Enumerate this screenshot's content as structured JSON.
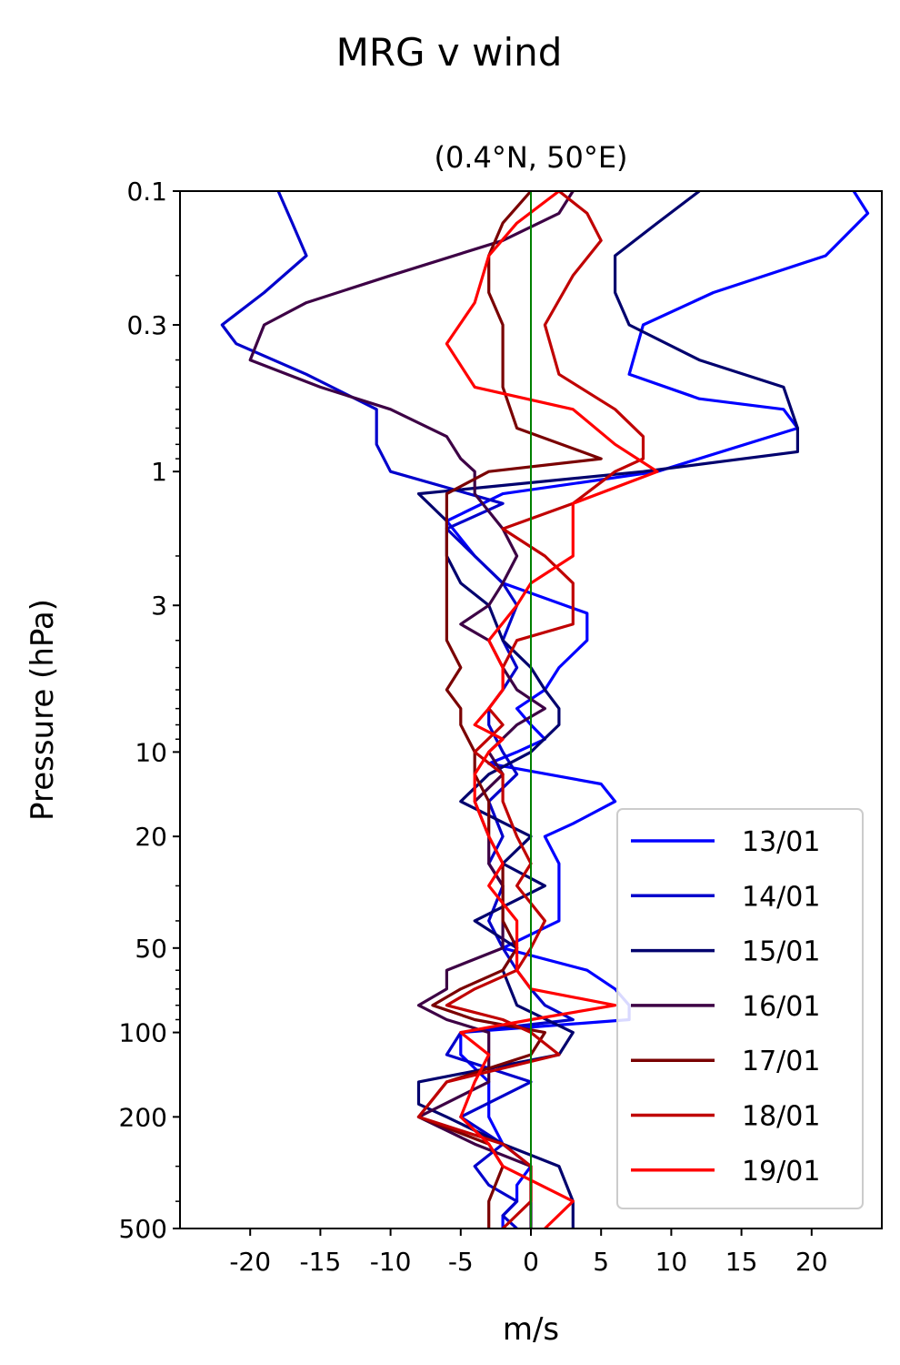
{
  "chart_data": {
    "type": "line",
    "title": "MRG v wind",
    "subtitle": "(0.4°N, 50°E)",
    "xlabel": "m/s",
    "ylabel": "Pressure (hPa)",
    "xlim": [
      -25,
      25
    ],
    "ylim": [
      500,
      0.1
    ],
    "y_scale": "log",
    "x_ticks": [
      -20,
      -15,
      -10,
      -5,
      0,
      5,
      10,
      15,
      20
    ],
    "x_tick_labels": [
      "-20",
      "-15",
      "-10",
      "-5",
      "0",
      "5",
      "10",
      "15",
      "20"
    ],
    "y_ticks": [
      0.1,
      0.3,
      1,
      3,
      10,
      20,
      50,
      100,
      200,
      500
    ],
    "y_tick_labels": [
      "0.1",
      "0.3",
      "1",
      "3",
      "10",
      "20",
      "50",
      "100",
      "200",
      "500"
    ],
    "zero_line_color": "#008000",
    "legend_position": "lower-right",
    "grid": false,
    "series": [
      {
        "name": "13/01",
        "color": "#0000ff",
        "p": [
          0.1,
          0.12,
          0.17,
          0.23,
          0.3,
          0.45,
          0.55,
          0.6,
          0.7,
          1.0,
          1.2,
          1.5,
          2.0,
          2.5,
          3.2,
          4.0,
          5.0,
          6.0,
          7.0,
          8.0,
          9.0,
          10.0,
          11.0,
          13.0,
          15.0,
          18.0,
          20.0,
          25.0,
          30.0,
          40.0,
          50.0,
          60.0,
          70.0,
          80.0,
          90.0,
          100.0,
          120.0,
          150.0,
          200.0,
          250.0,
          300.0,
          350.0,
          400.0,
          450.0,
          500.0
        ],
        "v": [
          23,
          24,
          21,
          13,
          8,
          7,
          12,
          18,
          19,
          9,
          -2,
          -6,
          -4,
          -2,
          4,
          4,
          2,
          1,
          -1,
          0,
          1,
          -1,
          -3,
          5,
          6,
          3,
          1,
          2,
          2,
          2,
          -2,
          4,
          6,
          7,
          7,
          -5,
          -5,
          -3,
          -3,
          -2,
          0,
          -1,
          -1,
          -2,
          -2
        ]
      },
      {
        "name": "14/01",
        "color": "#0000cc",
        "p": [
          0.1,
          0.13,
          0.17,
          0.23,
          0.3,
          0.35,
          0.45,
          0.6,
          0.8,
          1.0,
          1.3,
          1.6,
          2.0,
          2.5,
          3.0,
          4.0,
          5.0,
          6.0,
          7.0,
          8.0,
          10.0,
          12.0,
          15.0,
          20.0,
          25.0,
          30.0,
          40.0,
          50.0,
          60.0,
          70.0,
          80.0,
          90.0,
          100.0,
          120.0,
          150.0,
          200.0,
          250.0,
          300.0,
          350.0,
          400.0,
          450.0,
          500.0
        ],
        "v": [
          -18,
          -17,
          -16,
          -19,
          -22,
          -21,
          -16,
          -11,
          -11,
          -10,
          -2,
          -6,
          -4,
          -2,
          -1,
          -2,
          -1,
          -2,
          -3,
          -3,
          -2,
          -1,
          -3,
          -2,
          -3,
          -2,
          -3,
          -2,
          -1,
          0,
          1,
          3,
          -5,
          -6,
          0,
          -5,
          -2,
          -4,
          -3,
          -1,
          -2,
          -1
        ]
      },
      {
        "name": "15/01",
        "color": "#00006e",
        "p": [
          0.1,
          0.13,
          0.17,
          0.23,
          0.3,
          0.4,
          0.5,
          0.7,
          0.85,
          1.0,
          1.2,
          1.5,
          2.0,
          2.5,
          3.0,
          4.0,
          5.0,
          6.0,
          7.0,
          8.0,
          10.0,
          12.0,
          15.0,
          20.0,
          25.0,
          30.0,
          40.0,
          50.0,
          60.0,
          80.0,
          100.0,
          120.0,
          150.0,
          180.0,
          200.0,
          250.0,
          300.0,
          400.0,
          500.0
        ],
        "v": [
          12,
          9,
          6,
          6,
          7,
          12,
          18,
          19,
          19,
          8,
          -8,
          -6,
          -6,
          -5,
          -3,
          -2,
          0,
          1,
          2,
          2,
          0,
          -3,
          -5,
          0,
          -2,
          1,
          -4,
          -1,
          -2,
          -1,
          3,
          2,
          -8,
          -8,
          -6,
          -2,
          2,
          3,
          3
        ]
      },
      {
        "name": "16/01",
        "color": "#3d0045",
        "p": [
          0.1,
          0.12,
          0.15,
          0.2,
          0.25,
          0.3,
          0.4,
          0.5,
          0.6,
          0.75,
          0.9,
          1.0,
          1.2,
          1.6,
          2.0,
          2.5,
          3.0,
          3.5,
          4.0,
          5.0,
          6.0,
          7.0,
          8.0,
          10.0,
          12.0,
          15.0,
          20.0,
          25.0,
          30.0,
          40.0,
          50.0,
          60.0,
          70.0,
          80.0,
          90.0,
          100.0,
          120.0,
          150.0,
          200.0,
          250.0,
          300.0,
          400.0,
          500.0
        ],
        "v": [
          3,
          2,
          -2,
          -10,
          -16,
          -19,
          -20,
          -15,
          -10,
          -6,
          -5,
          -4,
          -4,
          -2,
          -1,
          -2,
          -3,
          -5,
          -3,
          -2,
          -1,
          1,
          -1,
          -3,
          -2,
          -4,
          -3,
          -3,
          -2,
          -2,
          -2,
          -6,
          -6,
          -8,
          -6,
          -3,
          -3,
          -3,
          -8,
          -4,
          0,
          0,
          0
        ]
      },
      {
        "name": "17/01",
        "color": "#7a0000",
        "p": [
          0.1,
          0.13,
          0.17,
          0.23,
          0.3,
          0.4,
          0.5,
          0.7,
          0.9,
          1.0,
          1.2,
          1.6,
          2.0,
          2.5,
          3.0,
          4.0,
          5.0,
          6.0,
          7.0,
          8.0,
          10.0,
          12.0,
          15.0,
          20.0,
          25.0,
          30.0,
          40.0,
          50.0,
          60.0,
          70.0,
          80.0,
          90.0,
          100.0,
          120.0,
          150.0,
          200.0,
          250.0,
          300.0,
          400.0,
          500.0
        ],
        "v": [
          0,
          -2,
          -3,
          -3,
          -2,
          -2,
          -2,
          -1,
          5,
          -3,
          -6,
          -6,
          -6,
          -6,
          -6,
          -6,
          -5,
          -6,
          -5,
          -5,
          -4,
          -4,
          -3,
          -3,
          -2,
          -2,
          -2,
          -1,
          -2,
          -5,
          -7,
          -4,
          1,
          0,
          -6,
          -8,
          -3,
          -2,
          -3,
          -3
        ]
      },
      {
        "name": "18/01",
        "color": "#c00000",
        "p": [
          0.1,
          0.12,
          0.15,
          0.2,
          0.3,
          0.45,
          0.6,
          0.75,
          0.9,
          1.0,
          1.3,
          1.6,
          2.0,
          2.5,
          3.0,
          3.5,
          4.0,
          5.0,
          6.0,
          7.0,
          8.0,
          10.0,
          12.0,
          15.0,
          20.0,
          25.0,
          30.0,
          40.0,
          50.0,
          60.0,
          70.0,
          80.0,
          90.0,
          100.0,
          120.0,
          150.0,
          200.0,
          250.0,
          300.0,
          400.0,
          500.0
        ],
        "v": [
          2,
          4,
          5,
          3,
          1,
          2,
          6,
          8,
          8,
          6,
          3,
          -2,
          1,
          3,
          3,
          3,
          -1,
          -2,
          -2,
          -3,
          -2,
          -4,
          -2,
          -2,
          -1,
          0,
          -1,
          1,
          0,
          -1,
          -4,
          -6,
          -2,
          0,
          2,
          -6,
          -8,
          -2,
          0,
          0,
          -2
        ]
      },
      {
        "name": "19/01",
        "color": "#ff0000",
        "p": [
          0.1,
          0.13,
          0.17,
          0.25,
          0.35,
          0.5,
          0.6,
          0.8,
          1.0,
          1.3,
          1.6,
          2.0,
          2.5,
          3.0,
          4.0,
          5.0,
          6.0,
          7.0,
          8.0,
          9.0,
          10.0,
          12.0,
          15.0,
          20.0,
          25.0,
          30.0,
          40.0,
          50.0,
          60.0,
          70.0,
          80.0,
          90.0,
          100.0,
          120.0,
          150.0,
          200.0,
          250.0,
          300.0,
          400.0,
          500.0
        ],
        "v": [
          2,
          -1,
          -3,
          -4,
          -6,
          -4,
          3,
          6,
          9,
          3,
          3,
          3,
          0,
          -1,
          -3,
          -2,
          -2,
          -3,
          -4,
          -2,
          -3,
          -4,
          -4,
          -3,
          -2,
          -3,
          -1,
          -1,
          -1,
          0,
          6,
          0,
          -5,
          -3,
          -4,
          -5,
          -3,
          -2,
          3,
          1
        ]
      }
    ]
  }
}
